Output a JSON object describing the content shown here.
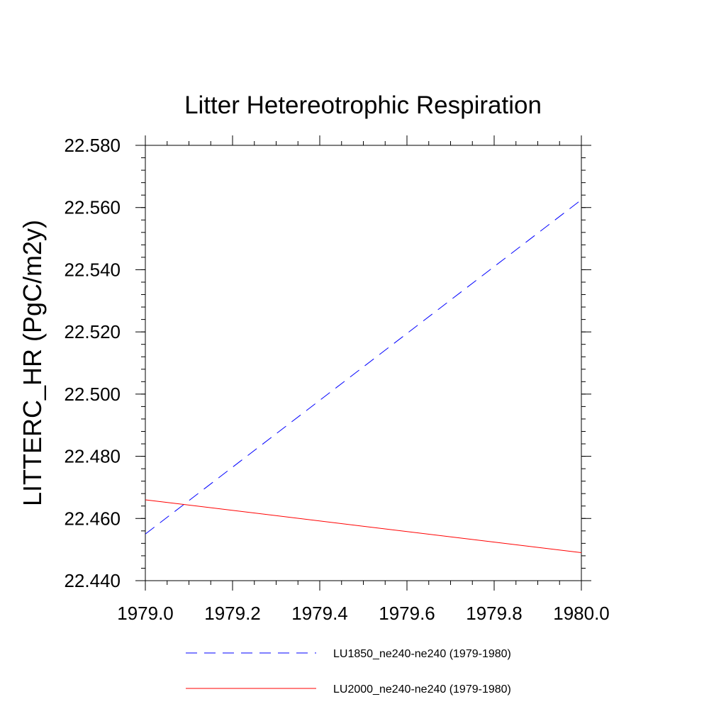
{
  "chart_data": {
    "type": "line",
    "title": "Litter Hetereotrophic Respiration",
    "xlabel": "",
    "ylabel": "LITTERC_HR  (PgC/m2y)",
    "xlim": [
      1979.0,
      1980.0
    ],
    "ylim": [
      22.44,
      22.58
    ],
    "x_ticks": [
      "1979.0",
      "1979.2",
      "1979.4",
      "1979.6",
      "1979.8",
      "1980.0"
    ],
    "y_ticks": [
      "22.440",
      "22.460",
      "22.480",
      "22.500",
      "22.520",
      "22.540",
      "22.560",
      "22.580"
    ],
    "grid": false,
    "legend_position": "bottom",
    "series": [
      {
        "name": "LU1850_ne240-ne240 (1979-1980)",
        "color": "#0000ff",
        "line_style": "dashed",
        "x": [
          1979.0,
          1980.0
        ],
        "values": [
          22.455,
          22.5625
        ]
      },
      {
        "name": "LU2000_ne240-ne240 (1979-1980)",
        "color": "#ff0000",
        "line_style": "solid",
        "x": [
          1979.0,
          1980.0
        ],
        "values": [
          22.466,
          22.449
        ]
      }
    ]
  }
}
